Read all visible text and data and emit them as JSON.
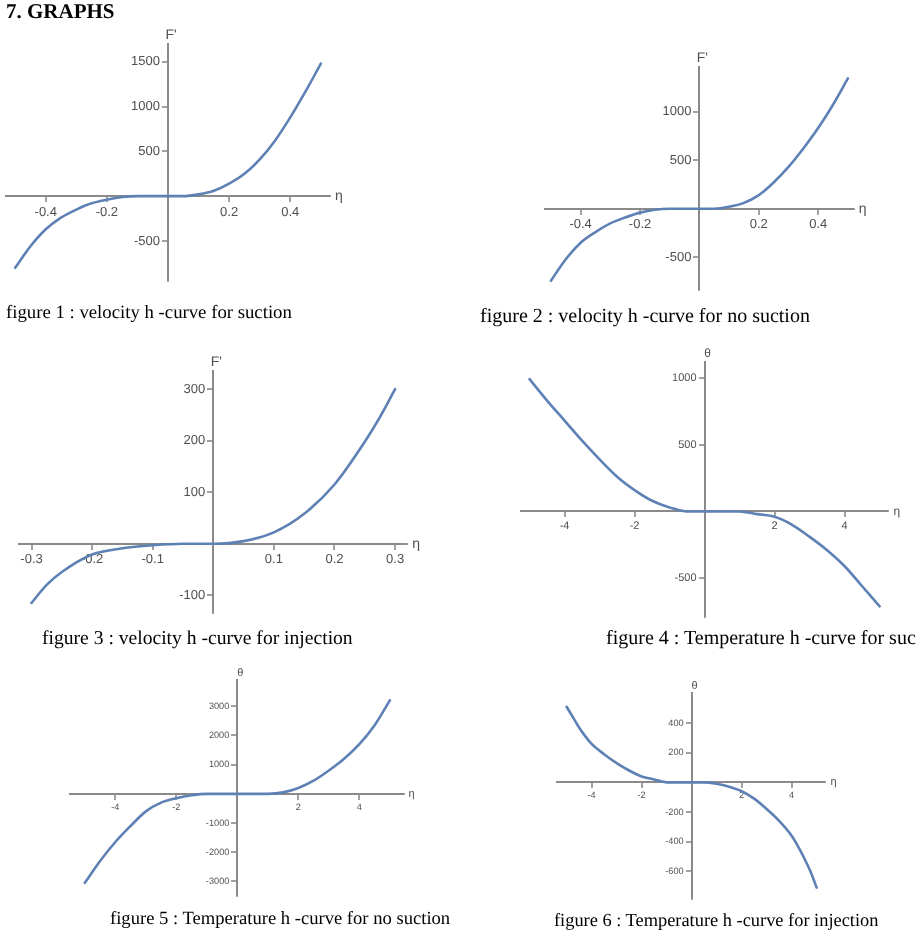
{
  "chart_data": [
    {
      "type": "line",
      "title": "figure 1 : velocity h -curve for suction",
      "annotations": [
        "7. GRAPHS"
      ],
      "xlabel": "η",
      "ylabel": "F'",
      "color": "#5e81b5",
      "x": [
        -0.5,
        -0.45,
        -0.4,
        -0.35,
        -0.3,
        -0.25,
        -0.2,
        -0.15,
        -0.1,
        -0.05,
        0,
        0.05,
        0.1,
        0.15,
        0.2,
        0.25,
        0.3,
        0.35,
        0.4,
        0.45,
        0.5
      ],
      "values": [
        -800,
        -560,
        -370,
        -240,
        -150,
        -80,
        -40,
        -10,
        0,
        0,
        0,
        0,
        20,
        60,
        140,
        250,
        410,
        620,
        880,
        1170,
        1480
      ],
      "xlim": [
        -0.53,
        0.53
      ],
      "ylim": [
        -950,
        1700
      ],
      "xticks": [
        -0.4,
        -0.2,
        0.2,
        0.4
      ],
      "yticks": [
        -500,
        500,
        1000,
        1500
      ]
    },
    {
      "type": "line",
      "title": "figure 2 : velocity h -curve for no suction",
      "xlabel": "η",
      "ylabel": "F'",
      "color": "#5e81b5",
      "x": [
        -0.5,
        -0.45,
        -0.4,
        -0.35,
        -0.3,
        -0.25,
        -0.2,
        -0.15,
        -0.1,
        -0.05,
        0,
        0.05,
        0.1,
        0.15,
        0.2,
        0.25,
        0.3,
        0.35,
        0.4,
        0.45,
        0.5
      ],
      "values": [
        -740,
        -520,
        -350,
        -240,
        -150,
        -90,
        -40,
        -10,
        0,
        0,
        0,
        0,
        20,
        60,
        140,
        270,
        430,
        620,
        830,
        1070,
        1340
      ],
      "xlim": [
        -0.52,
        0.52
      ],
      "ylim": [
        -840,
        1460
      ],
      "xticks": [
        -0.4,
        -0.2,
        0.2,
        0.4
      ],
      "yticks": [
        -500,
        500,
        1000
      ]
    },
    {
      "type": "line",
      "title": "figure 3 : velocity h -curve for injection",
      "xlabel": "η",
      "ylabel": "F'",
      "color": "#5e81b5",
      "x": [
        -0.3,
        -0.275,
        -0.25,
        -0.2,
        -0.15,
        -0.1,
        -0.05,
        0,
        0.05,
        0.1,
        0.15,
        0.2,
        0.25,
        0.275,
        0.3
      ],
      "values": [
        -115,
        -80,
        -55,
        -21,
        -9,
        -3,
        0,
        0,
        5,
        22,
        58,
        115,
        198,
        246,
        300
      ],
      "xlim": [
        -0.32,
        0.32
      ],
      "ylim": [
        -135,
        335
      ],
      "xticks": [
        -0.3,
        -0.2,
        -0.1,
        0.1,
        0.2,
        0.3
      ],
      "yticks": [
        -100,
        100,
        200,
        300
      ]
    },
    {
      "type": "line",
      "title": "figure 4 : Temperature h -curve for suc",
      "xlabel": "η",
      "ylabel": "θ",
      "color": "#5e81b5",
      "x": [
        -5,
        -4.5,
        -4,
        -3.5,
        -3,
        -2.5,
        -2,
        -1.5,
        -1,
        -0.5,
        0,
        0.5,
        1,
        1.5,
        2,
        2.5,
        3,
        3.5,
        4,
        4.5,
        5
      ],
      "values": [
        990,
        830,
        680,
        530,
        390,
        260,
        160,
        80,
        30,
        0,
        0,
        0,
        0,
        -20,
        -40,
        -100,
        -190,
        -290,
        -410,
        -560,
        -710
      ],
      "xlim": [
        -5.25,
        5.25
      ],
      "ylim": [
        -790,
        1120
      ],
      "xticks": [
        -4,
        -2,
        2,
        4
      ],
      "yticks": [
        -500,
        500,
        1000
      ]
    },
    {
      "type": "line",
      "title": "figure 5 : Temperature h -curve for no suction",
      "xlabel": "η",
      "ylabel": "θ",
      "color": "#5e81b5",
      "x": [
        -5,
        -4.5,
        -4,
        -3.5,
        -3,
        -2.5,
        -2,
        -1.5,
        -1,
        -0.5,
        0,
        0.5,
        1,
        1.5,
        2,
        2.5,
        3,
        3.5,
        4,
        4.5,
        5
      ],
      "values": [
        -3050,
        -2300,
        -1650,
        -1100,
        -600,
        -300,
        -150,
        -50,
        0,
        0,
        0,
        0,
        0,
        50,
        200,
        450,
        800,
        1200,
        1700,
        2350,
        3200
      ],
      "xlim": [
        -5.5,
        5.45
      ],
      "ylim": [
        -3500,
        3900
      ],
      "xticks": [
        -4,
        -2,
        2,
        4
      ],
      "yticks": [
        -3000,
        -2000,
        -1000,
        1000,
        2000,
        3000
      ]
    },
    {
      "type": "line",
      "title": "figure 6 : Temperature h -curve for injection",
      "xlabel": "η",
      "ylabel": "θ",
      "color": "#5e81b5",
      "x": [
        -5,
        -4.75,
        -4.5,
        -4.25,
        -4,
        -3.5,
        -3,
        -2.5,
        -2,
        -1.5,
        -1,
        -0.5,
        0,
        0.5,
        1,
        1.5,
        2,
        2.5,
        3,
        3.5,
        4,
        4.25,
        4.5,
        4.75,
        5
      ],
      "values": [
        510,
        440,
        370,
        310,
        260,
        190,
        130,
        80,
        40,
        20,
        0,
        0,
        0,
        0,
        -10,
        -30,
        -60,
        -110,
        -180,
        -260,
        -360,
        -430,
        -510,
        -600,
        -710
      ],
      "xlim": [
        -5.4,
        5.35
      ],
      "ylim": [
        -790,
        600
      ],
      "xticks": [
        -4,
        -2,
        2,
        4
      ],
      "yticks": [
        -600,
        -400,
        -200,
        200,
        400
      ]
    }
  ]
}
